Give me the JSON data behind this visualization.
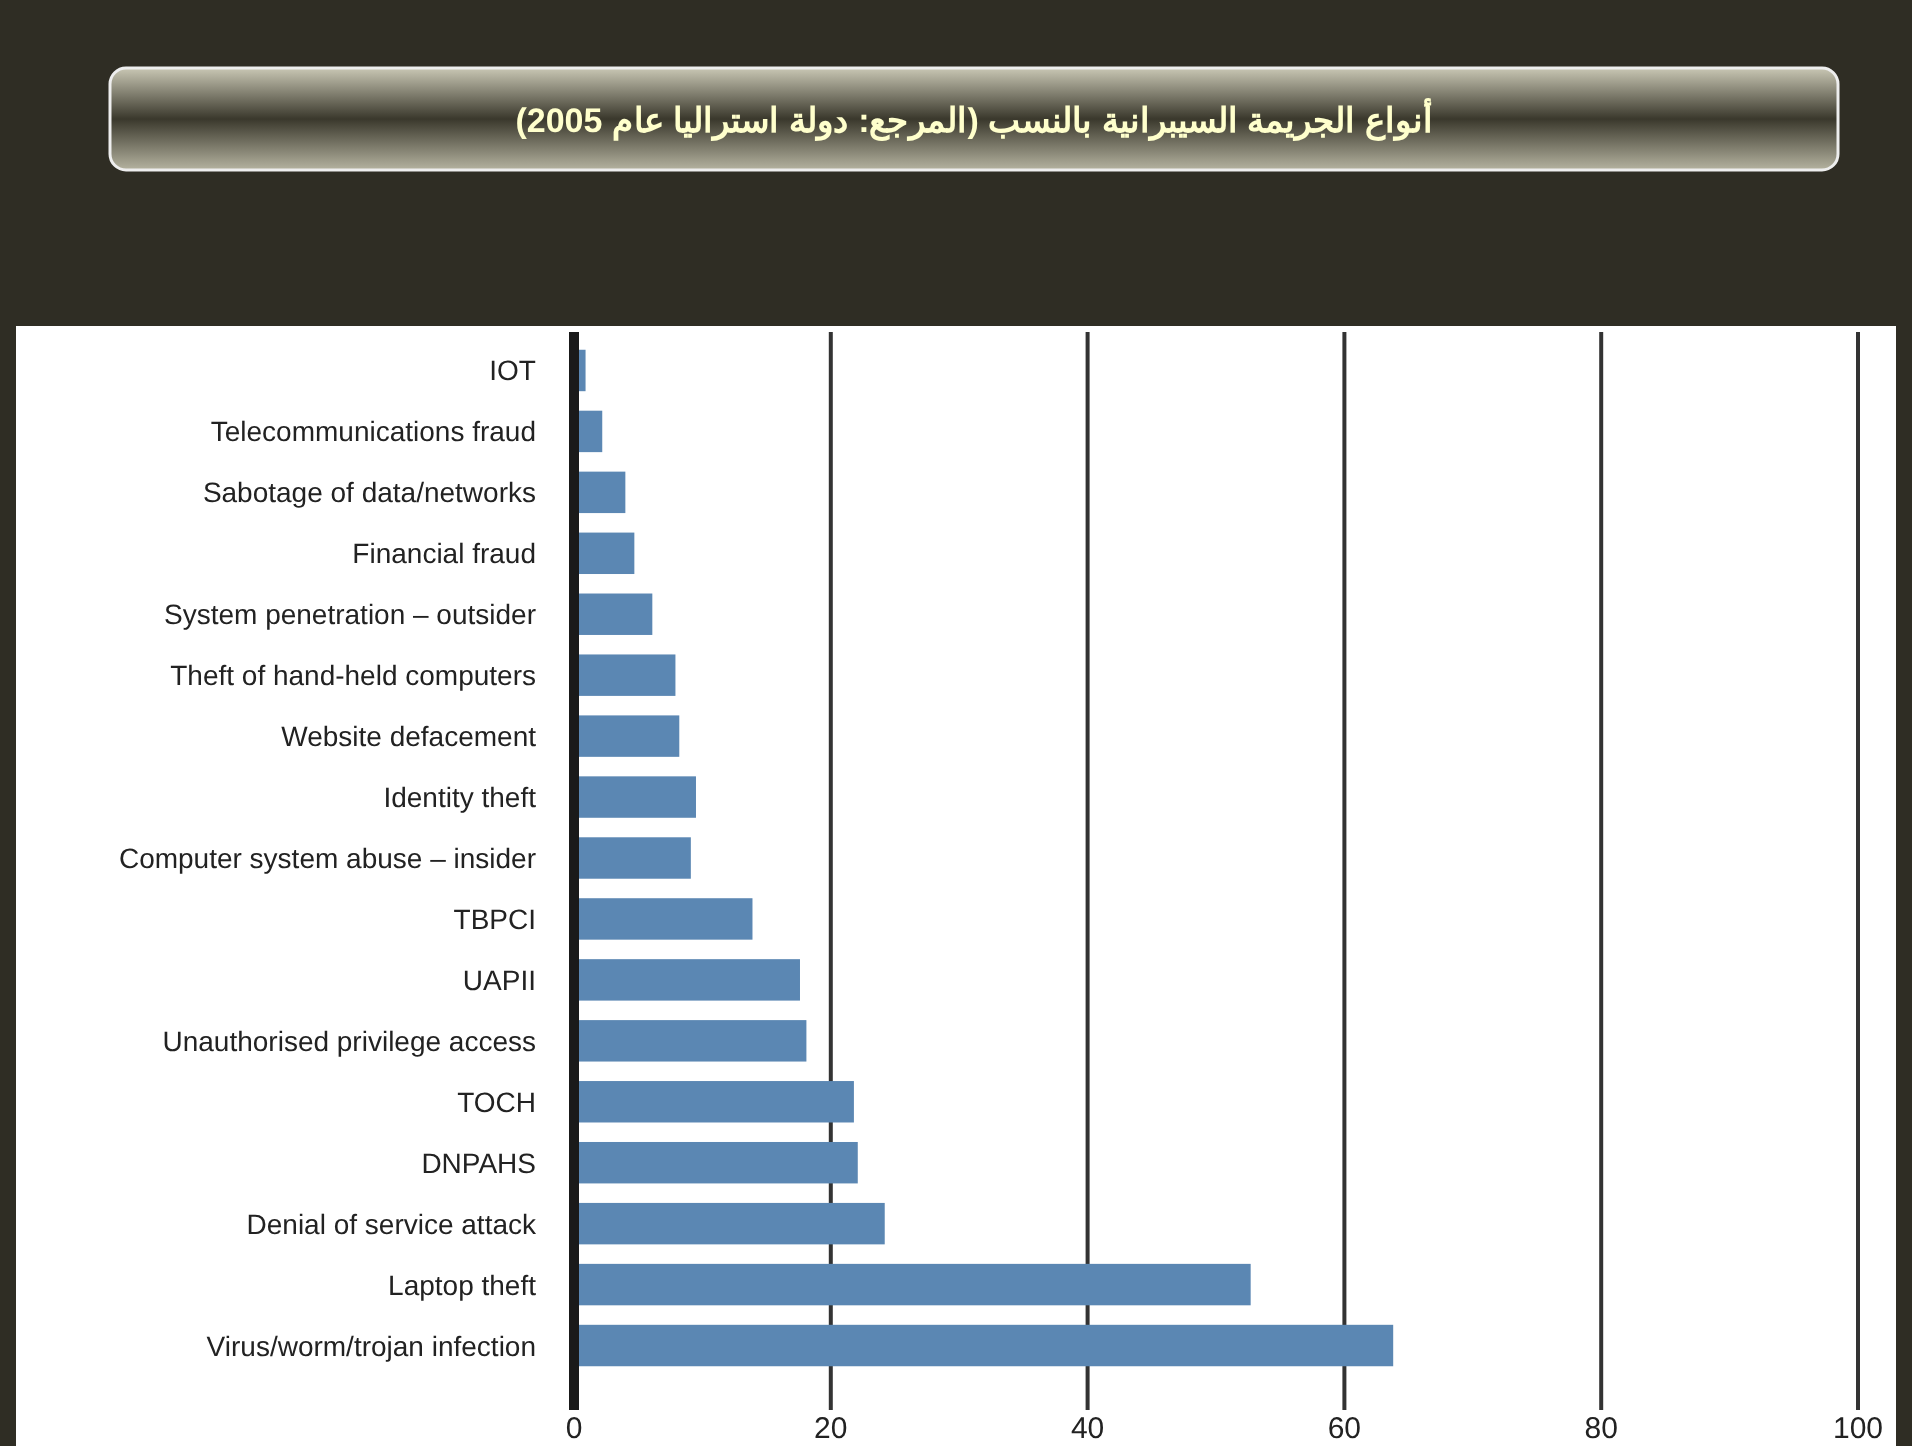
{
  "chart_data": {
    "type": "bar",
    "orientation": "horizontal",
    "title": "أنواع الجريمة السيبرانية بالنسب (المرجع: دولة استراليا عام 2005)",
    "categories": [
      "IOT",
      "Telecommunications fraud",
      "Sabotage of data/networks",
      "Financial fraud",
      "System penetration – outsider",
      "Theft of hand-held computers",
      "Website defacement",
      "Identity theft",
      "Computer system abuse – insider",
      "TBPCI",
      "UAPII",
      "Unauthorised privilege access",
      "TOCH",
      "DNPAHS",
      "Denial of service attack",
      "Laptop theft",
      "Virus/worm/trojan infection"
    ],
    "values": [
      0.9,
      2.2,
      4.0,
      4.7,
      6.1,
      7.9,
      8.2,
      9.5,
      9.1,
      13.9,
      17.6,
      18.1,
      21.8,
      22.1,
      24.2,
      52.7,
      63.8
    ],
    "color": "#5b87b3",
    "xlim": [
      0,
      100
    ],
    "xticks": [
      0,
      20,
      40,
      60,
      80,
      100
    ],
    "grid": "x"
  }
}
